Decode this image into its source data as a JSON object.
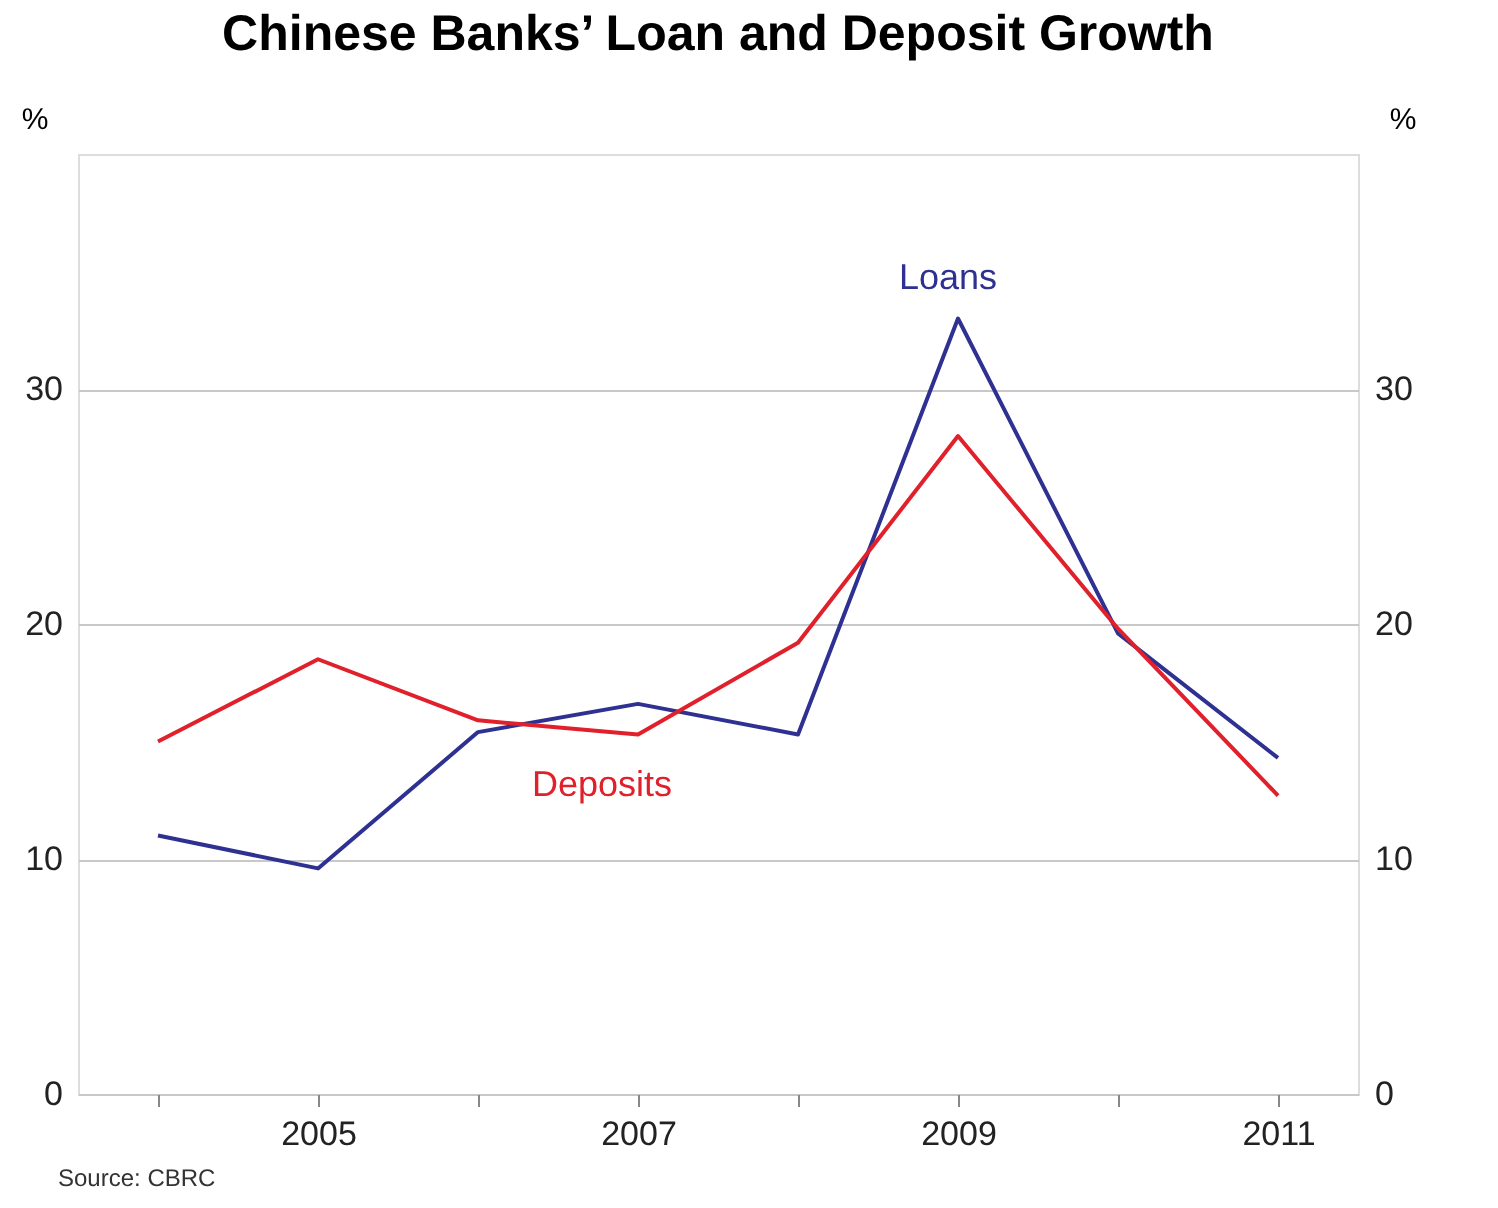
{
  "chart_data": {
    "type": "line",
    "title": "Chinese Banks’ Loan and Deposit Growth",
    "x": [
      2004,
      2005,
      2006,
      2007,
      2008,
      2009,
      2010,
      2011
    ],
    "series": [
      {
        "name": "Loans",
        "color": "#2e3192",
        "values": [
          11,
          9.6,
          15.4,
          16.6,
          15.3,
          33,
          19.6,
          14.3
        ]
      },
      {
        "name": "Deposits",
        "color": "#e0202a",
        "values": [
          15,
          18.5,
          15.9,
          15.3,
          19.2,
          28,
          19.8,
          12.7
        ]
      }
    ],
    "xlim": [
      2003.5,
      2011.5
    ],
    "xticks": [
      {
        "value": 2004,
        "label": null
      },
      2005,
      {
        "value": 2006,
        "label": null
      },
      2007,
      {
        "value": 2008,
        "label": null
      },
      2009,
      {
        "value": 2010,
        "label": null
      },
      2011
    ],
    "ylim": [
      0,
      40
    ],
    "yticks": [
      0,
      10,
      20,
      30
    ],
    "y2lim": [
      0,
      40
    ],
    "y2ticks": [
      0,
      10,
      20,
      30
    ],
    "ylabel": "%",
    "y2label": "%",
    "grid": "y",
    "legend": false,
    "annotations": [
      "Source: CBRC"
    ]
  }
}
